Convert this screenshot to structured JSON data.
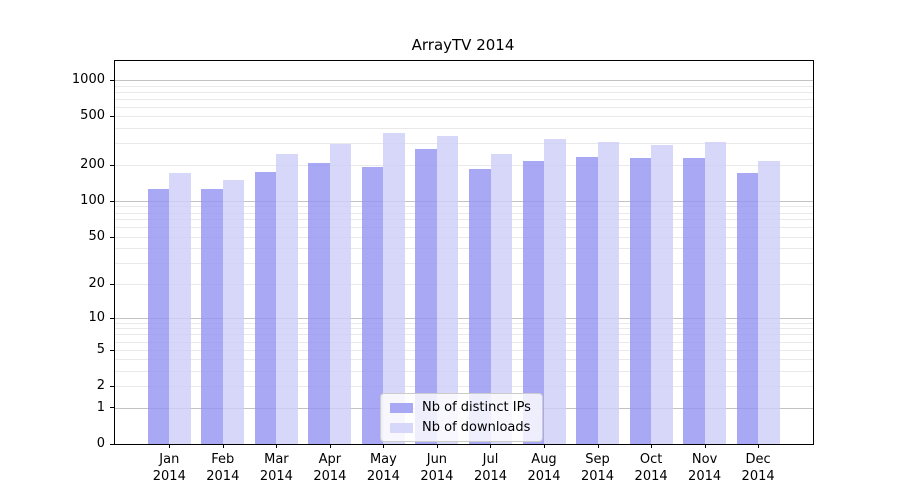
{
  "figure": {
    "title": "ArrayTV 2014",
    "background_color": "#ffffff"
  },
  "chart_data": {
    "type": "bar",
    "title": "ArrayTV 2014",
    "categories": [
      "Jan",
      "Feb",
      "Mar",
      "Apr",
      "May",
      "Jun",
      "Jul",
      "Aug",
      "Sep",
      "Oct",
      "Nov",
      "Dec"
    ],
    "category_year": "2014",
    "series": [
      {
        "name": "Nb of distinct IPs",
        "color": "#a8a8f5",
        "values": [
          125,
          125,
          175,
          205,
          190,
          270,
          185,
          215,
          230,
          225,
          225,
          170
        ]
      },
      {
        "name": "Nb of downloads",
        "color": "#d7d7f9",
        "values": [
          170,
          150,
          245,
          295,
          365,
          345,
          245,
          325,
          310,
          290,
          305,
          215
        ]
      }
    ],
    "y_axis": {
      "scale": "log1p",
      "tick_values": [
        0,
        1,
        2,
        5,
        10,
        20,
        50,
        100,
        200,
        500,
        1000
      ],
      "tick_labels": [
        "0",
        "1",
        "2",
        "5",
        "10",
        "20",
        "50",
        "100",
        "200",
        "500",
        "1000"
      ],
      "top_value": 1434,
      "major_gridlines": [
        1,
        10,
        100,
        1000
      ],
      "minor_gridlines": [
        2,
        3,
        4,
        5,
        6,
        7,
        8,
        9,
        20,
        30,
        40,
        50,
        60,
        70,
        80,
        90,
        200,
        300,
        400,
        500,
        600,
        700,
        800,
        900
      ]
    },
    "x_axis": {
      "tick_line1": [
        "Jan",
        "Feb",
        "Mar",
        "Apr",
        "May",
        "Jun",
        "Jul",
        "Aug",
        "Sep",
        "Oct",
        "Nov",
        "Dec"
      ],
      "tick_line2": "2014"
    },
    "legend": {
      "position": "lower center",
      "entries": [
        "Nb of distinct IPs",
        "Nb of downloads"
      ]
    },
    "colors": {
      "bar_distinct_ips": "#a8a8f5",
      "bar_downloads": "#d7d7f9",
      "major_grid": "#c2c2c2",
      "minor_grid": "#e9e9e9",
      "spine": "#000000",
      "text": "#000000"
    },
    "grid": "both",
    "ylim": [
      0,
      1434
    ]
  }
}
